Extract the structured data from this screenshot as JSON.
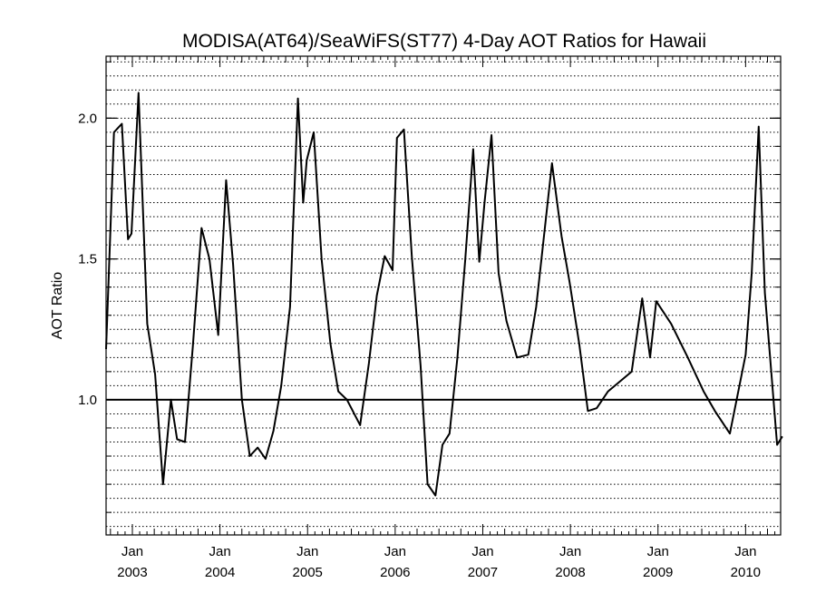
{
  "chart_data": {
    "type": "line",
    "title": "MODISA(AT64)/SeaWiFS(ST77) 4-Day AOT Ratios for Hawaii",
    "ylabel": "AOT Ratio",
    "xlabel": "",
    "xlim": [
      2002.7,
      2010.4
    ],
    "ylim": [
      0.52,
      2.22
    ],
    "reference_line": 1.0,
    "grid": "horizontal dotted",
    "line_color": "#000000",
    "y_ticks": [
      {
        "value": 1.0,
        "label": "1.0"
      },
      {
        "value": 1.5,
        "label": "1.5"
      },
      {
        "value": 2.0,
        "label": "2.0"
      }
    ],
    "x_ticks": [
      {
        "value": 2003.0,
        "month": "Jan",
        "year": "2003"
      },
      {
        "value": 2004.0,
        "month": "Jan",
        "year": "2004"
      },
      {
        "value": 2005.0,
        "month": "Jan",
        "year": "2005"
      },
      {
        "value": 2006.0,
        "month": "Jan",
        "year": "2006"
      },
      {
        "value": 2007.0,
        "month": "Jan",
        "year": "2007"
      },
      {
        "value": 2008.0,
        "month": "Jan",
        "year": "2008"
      },
      {
        "value": 2009.0,
        "month": "Jan",
        "year": "2009"
      },
      {
        "value": 2010.0,
        "month": "Jan",
        "year": "2010"
      }
    ],
    "series": [
      {
        "x": [
          2002.7,
          2002.79,
          2002.88,
          2002.95,
          2002.99,
          2003.07,
          2003.17,
          2003.26,
          2003.35,
          2003.44,
          2003.51,
          2003.6,
          2003.69,
          2003.79,
          2003.88,
          2003.98,
          2004.07,
          2004.15,
          2004.25,
          2004.34,
          2004.43,
          2004.52,
          2004.61,
          2004.7,
          2004.8,
          2004.89,
          2004.95,
          2004.99,
          2005.07,
          2005.16,
          2005.26,
          2005.35,
          2005.45,
          2005.6,
          2005.7,
          2005.79,
          2005.88,
          2005.97,
          2006.02,
          2006.1,
          2006.19,
          2006.29,
          2006.37,
          2006.46,
          2006.54,
          2006.62,
          2006.71,
          2006.8,
          2006.89,
          2006.96,
          2007.02,
          2007.1,
          2007.18,
          2007.27,
          2007.39,
          2007.52,
          2007.61,
          2007.79,
          2007.9,
          2007.99,
          2008.1,
          2008.2,
          2008.3,
          2008.43,
          2008.7,
          2008.82,
          2008.91,
          2008.98,
          2009.15,
          2009.34,
          2009.52,
          2009.65,
          2009.82,
          2009.91,
          2010.0,
          2010.07,
          2010.15,
          2010.22,
          2010.29,
          2010.36,
          2010.42
        ],
        "y": [
          1.18,
          1.95,
          1.98,
          1.57,
          1.59,
          2.09,
          1.27,
          1.09,
          0.7,
          1.0,
          0.86,
          0.85,
          1.19,
          1.61,
          1.5,
          1.23,
          1.78,
          1.48,
          1.0,
          0.8,
          0.83,
          0.79,
          0.89,
          1.05,
          1.33,
          2.07,
          1.7,
          1.85,
          1.95,
          1.5,
          1.2,
          1.03,
          1.0,
          0.91,
          1.13,
          1.37,
          1.51,
          1.46,
          1.93,
          1.96,
          1.51,
          1.12,
          0.7,
          0.66,
          0.84,
          0.88,
          1.15,
          1.5,
          1.89,
          1.49,
          1.7,
          1.94,
          1.45,
          1.28,
          1.15,
          1.16,
          1.33,
          1.84,
          1.58,
          1.42,
          1.2,
          0.96,
          0.97,
          1.03,
          1.1,
          1.36,
          1.15,
          1.35,
          1.27,
          1.15,
          1.03,
          0.96,
          0.88,
          1.02,
          1.16,
          1.45,
          1.97,
          1.38,
          1.11,
          0.84,
          0.87
        ]
      }
    ]
  }
}
